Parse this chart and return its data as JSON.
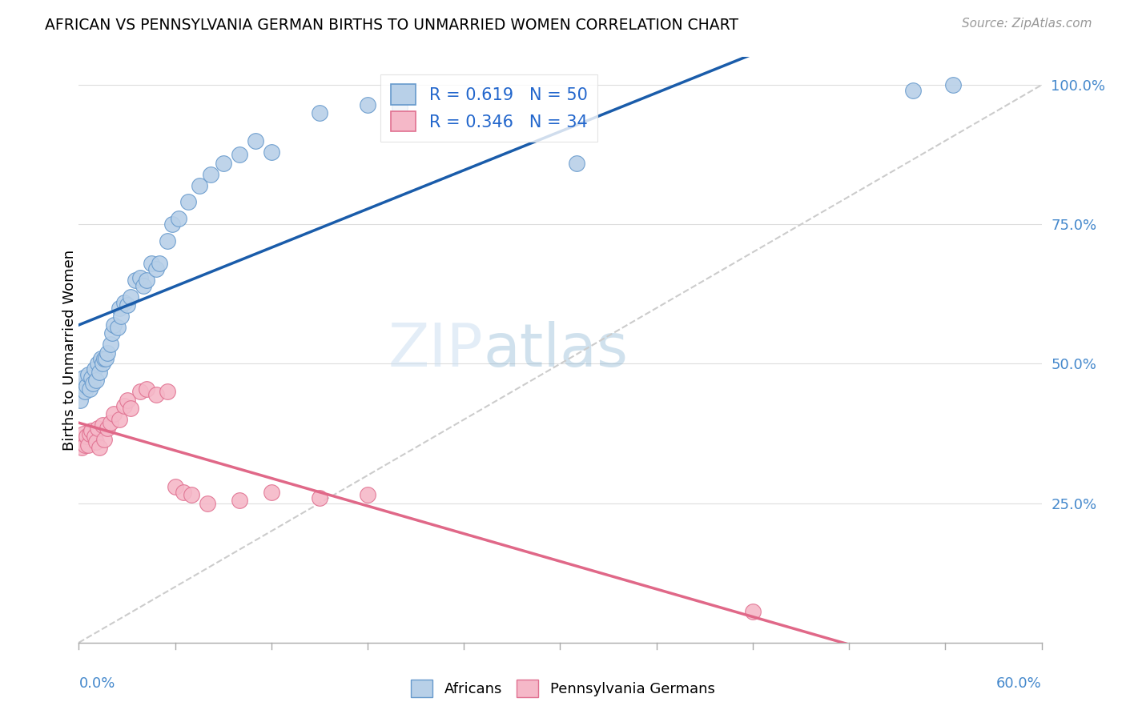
{
  "title": "AFRICAN VS PENNSYLVANIA GERMAN BIRTHS TO UNMARRIED WOMEN CORRELATION CHART",
  "source": "Source: ZipAtlas.com",
  "ylabel": "Births to Unmarried Women",
  "ytick_labels": [
    "25.0%",
    "50.0%",
    "75.0%",
    "100.0%"
  ],
  "legend_african": "R = 0.619   N = 50",
  "legend_pg": "R = 0.346   N = 34",
  "blue_fill": "#b8d0e8",
  "blue_edge": "#6699cc",
  "blue_line": "#1a5caa",
  "pink_fill": "#f5b8c8",
  "pink_edge": "#e07090",
  "pink_line": "#e06888",
  "legend_color": "#2266cc",
  "axis_color": "#4488cc",
  "xmin": 0.0,
  "xmax": 0.6,
  "ymin": 0.0,
  "ymax": 1.05,
  "african_x": [
    0.001,
    0.002,
    0.003,
    0.004,
    0.005,
    0.006,
    0.007,
    0.008,
    0.009,
    0.01,
    0.011,
    0.012,
    0.013,
    0.014,
    0.015,
    0.016,
    0.017,
    0.018,
    0.02,
    0.021,
    0.022,
    0.024,
    0.025,
    0.026,
    0.028,
    0.03,
    0.032,
    0.035,
    0.038,
    0.04,
    0.042,
    0.045,
    0.048,
    0.05,
    0.055,
    0.058,
    0.062,
    0.068,
    0.075,
    0.082,
    0.09,
    0.1,
    0.11,
    0.12,
    0.15,
    0.18,
    0.2,
    0.31,
    0.52,
    0.545
  ],
  "african_y": [
    0.435,
    0.46,
    0.475,
    0.45,
    0.46,
    0.48,
    0.455,
    0.475,
    0.465,
    0.49,
    0.47,
    0.5,
    0.485,
    0.51,
    0.5,
    0.51,
    0.51,
    0.52,
    0.535,
    0.555,
    0.57,
    0.565,
    0.6,
    0.585,
    0.61,
    0.605,
    0.62,
    0.65,
    0.655,
    0.64,
    0.65,
    0.68,
    0.67,
    0.68,
    0.72,
    0.75,
    0.76,
    0.79,
    0.82,
    0.84,
    0.86,
    0.875,
    0.9,
    0.88,
    0.95,
    0.965,
    0.96,
    0.86,
    0.99,
    1.0
  ],
  "pg_x": [
    0.001,
    0.002,
    0.003,
    0.004,
    0.005,
    0.006,
    0.007,
    0.008,
    0.01,
    0.011,
    0.012,
    0.013,
    0.015,
    0.016,
    0.018,
    0.02,
    0.022,
    0.025,
    0.028,
    0.03,
    0.032,
    0.038,
    0.042,
    0.048,
    0.055,
    0.06,
    0.065,
    0.07,
    0.08,
    0.1,
    0.12,
    0.15,
    0.18,
    0.42
  ],
  "pg_y": [
    0.36,
    0.35,
    0.375,
    0.355,
    0.37,
    0.355,
    0.375,
    0.38,
    0.37,
    0.36,
    0.385,
    0.35,
    0.39,
    0.365,
    0.385,
    0.395,
    0.41,
    0.4,
    0.425,
    0.435,
    0.42,
    0.45,
    0.455,
    0.445,
    0.45,
    0.28,
    0.27,
    0.265,
    0.25,
    0.255,
    0.27,
    0.26,
    0.265,
    0.055
  ]
}
